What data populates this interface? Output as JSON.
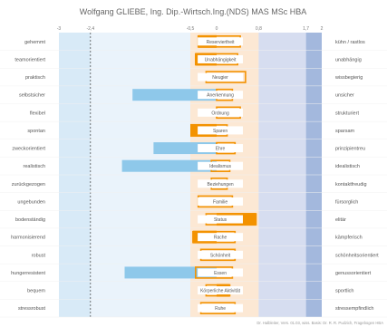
{
  "chart_data": {
    "type": "bar",
    "title": "Wolfgang GLIEBE, Ing. Dip.-Wirtsch.Ing.(NDS) MAS MSc HBA",
    "footer": "Dr. Halbleiter, Vers. 01.03, wiss. Basis: Dr. R. R. Pudzich, Fragebogen HBA",
    "axis_ticks": [
      "-3",
      "-2,4",
      "-0,5",
      "0",
      "0,8",
      "1,7",
      "2"
    ],
    "xlim": [
      -3,
      2
    ],
    "zones": [
      {
        "from": -3,
        "to": -2.4,
        "color": "#d8eaf7"
      },
      {
        "from": -2.4,
        "to": -0.5,
        "color": "#eaf3fb"
      },
      {
        "from": -0.5,
        "to": 0.8,
        "color": "#fce8d4"
      },
      {
        "from": 0.8,
        "to": 1.7,
        "color": "#d6ddf0"
      },
      {
        "from": 1.7,
        "to": 2,
        "color": "#a3b8dd"
      }
    ],
    "dashed_line_at": -2.4,
    "series": [
      {
        "name": "",
        "color": "#8ec8ea"
      },
      {
        "name": "",
        "color": "#f39200"
      }
    ],
    "rows": [
      {
        "left": "gehemmt",
        "center": "Reserviertheit",
        "right": "kühn / rastlos",
        "blue": 0,
        "orange": -0.35,
        "orange_outline": [
          -0.35,
          0.45
        ]
      },
      {
        "left": "teamorientiert",
        "center": "Unabhängigkeit",
        "right": "unabhängig",
        "blue": 0,
        "orange": -0.4,
        "orange_outline": [
          -0.4,
          0.4
        ]
      },
      {
        "left": "praktisch",
        "center": "Neugier",
        "right": "wissbegierig",
        "blue": 0,
        "orange": 0,
        "orange_outline": [
          -0.2,
          0.55
        ]
      },
      {
        "left": "selbstsicher",
        "center": "Anerkennung",
        "right": "unsicher",
        "blue": -1.6,
        "orange": 0,
        "orange_outline": [
          0,
          0.3
        ]
      },
      {
        "left": "flexibel",
        "center": "Ordnung",
        "right": "strukturiert",
        "blue": 0,
        "orange": 0,
        "orange_outline": [
          0,
          0.45
        ]
      },
      {
        "left": "spontan",
        "center": "Sparen",
        "right": "sparsam",
        "blue": 0,
        "orange": -0.5,
        "orange_outline": [
          -0.3,
          0.2
        ]
      },
      {
        "left": "zweckorientiert",
        "center": "Ehre",
        "right": "prinzipientreu",
        "blue": -1.2,
        "orange": 0,
        "orange_outline": [
          0,
          0.35
        ]
      },
      {
        "left": "realistisch",
        "center": "Idealismus",
        "right": "idealistisch",
        "blue": -1.8,
        "orange": 0,
        "orange_outline": [
          -0.1,
          0.25
        ]
      },
      {
        "left": "zurückgezogen",
        "center": "Beziehungen",
        "right": "kontaktfreudig",
        "blue": 0,
        "orange": 0,
        "orange_outline": [
          -0.1,
          0.2
        ]
      },
      {
        "left": "ungebunden",
        "center": "Familie",
        "right": "fürsorglich",
        "blue": 0,
        "orange": 0,
        "orange_outline": [
          -0.35,
          0.3
        ]
      },
      {
        "left": "bodenständig",
        "center": "Status",
        "right": "elitär",
        "blue": 0,
        "orange": 0.75,
        "orange_outline": [
          -0.2,
          0.75
        ]
      },
      {
        "left": "harmonisierend",
        "center": "Rache",
        "right": "kämpferisch",
        "blue": 0,
        "orange": -0.45,
        "orange_outline": [
          -0.45,
          0.35
        ]
      },
      {
        "left": "robust",
        "center": "Schönheit",
        "right": "schönheitsorientiert",
        "blue": 0,
        "orange": 0,
        "orange_outline": [
          -0.3,
          0.35
        ]
      },
      {
        "left": "hungerresistent",
        "center": "Essen",
        "right": "genussorientiert",
        "blue": -1.75,
        "orange": 0,
        "orange_outline": [
          -0.4,
          0.3
        ]
      },
      {
        "left": "bequem",
        "center": "Körperliche Aktivität",
        "right": "sportlich",
        "blue": 0,
        "orange": 0.25,
        "orange_outline": [
          -0.2,
          0.25
        ]
      },
      {
        "left": "stressrobust",
        "center": "Ruhe",
        "right": "stressempfindlich",
        "blue": 0,
        "orange": 0,
        "orange_outline": [
          -0.3,
          0.35
        ]
      }
    ]
  }
}
